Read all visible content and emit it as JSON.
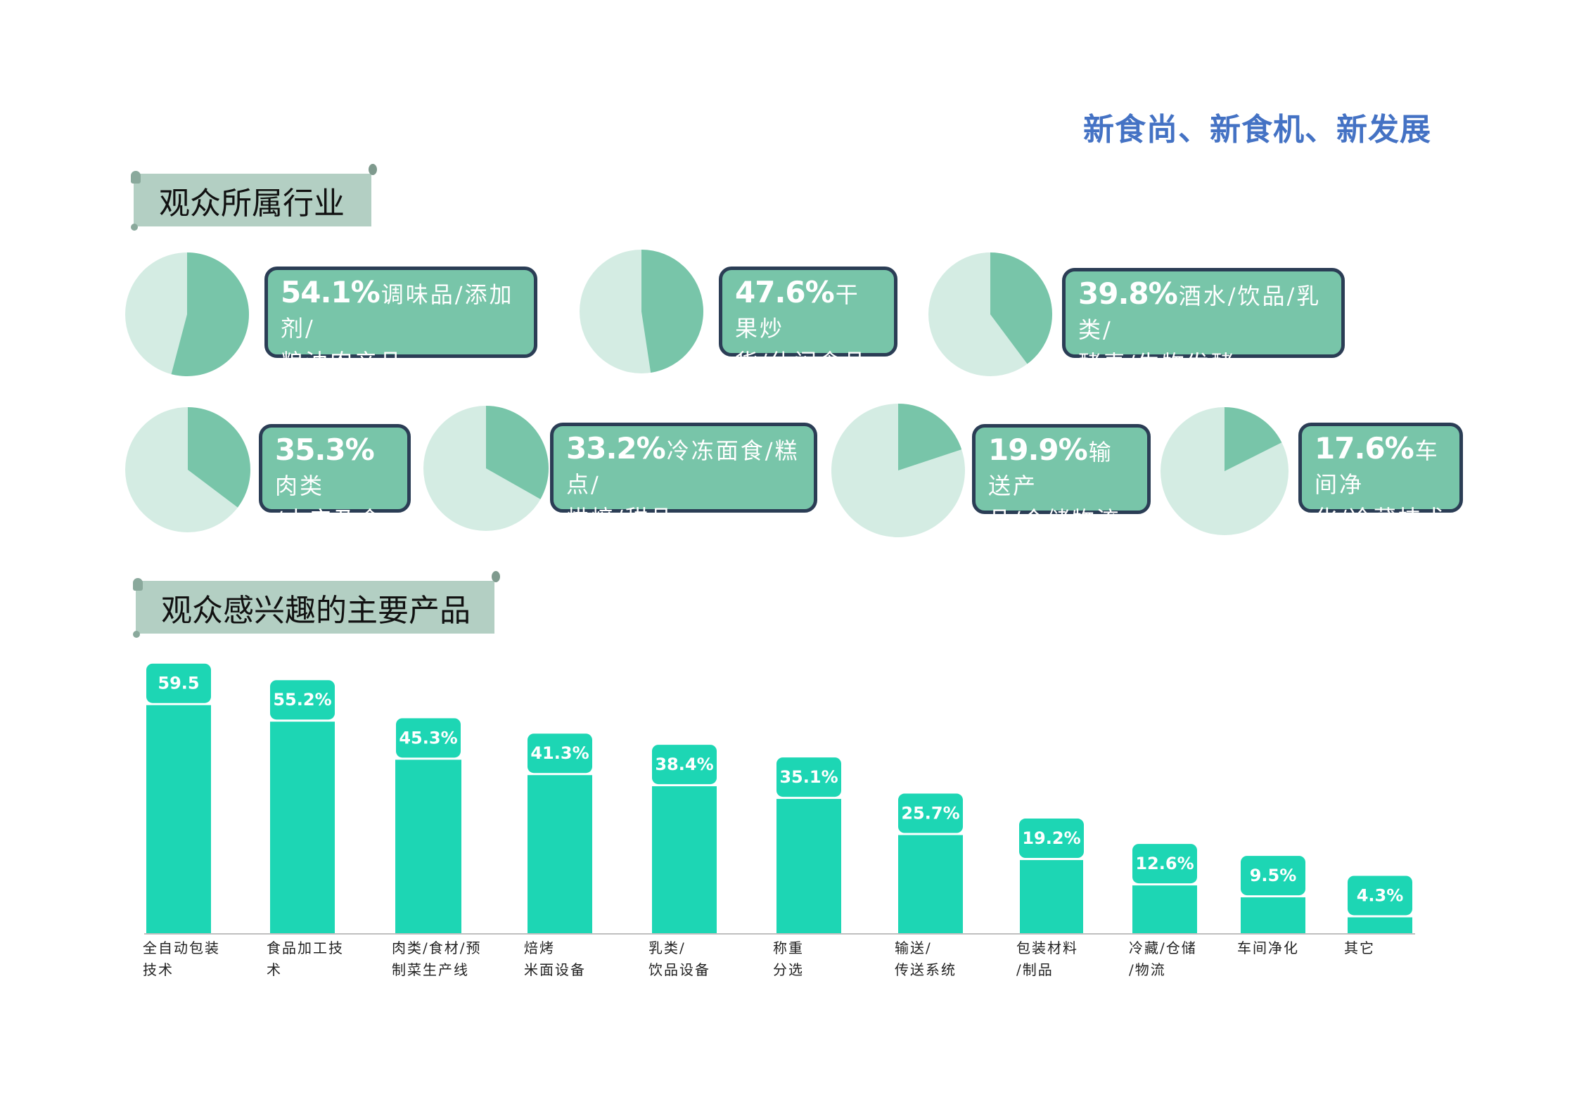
{
  "slogan": "新食尚、新食机、新发展",
  "section1": {
    "title": "观众所属行业"
  },
  "section2": {
    "title": "观众感兴趣的主要产品"
  },
  "colors": {
    "pie_dark": "#78c5a9",
    "pie_light": "#d4ece3",
    "box_fill": "#78c5a9",
    "box_border": "#2b3d55",
    "bar": "#1dd6b4",
    "banner": "#b3cfc3",
    "slogan": "#4472c4"
  },
  "industries": [
    {
      "pct": "54.1%",
      "value": 54.1,
      "line1": "调味品/添加剂/",
      "line2": "粮油农产品"
    },
    {
      "pct": "47.6%",
      "value": 47.6,
      "line1": "干果炒",
      "line2": "货/休闲食品"
    },
    {
      "pct": "39.8%",
      "value": 39.8,
      "line1": "酒水/饮品/乳类/",
      "line2": "酵素/生物发酵"
    },
    {
      "pct": "35.3%",
      "value": 35.3,
      "line1": "肉类",
      "line2": "/水产及食材"
    },
    {
      "pct": "33.2%",
      "value": 33.2,
      "line1": "冷冻面食/糕点/",
      "line2": "烘焙/甜品"
    },
    {
      "pct": "19.9%",
      "value": 19.9,
      "line1": "输送产",
      "line2": "品/仓储物流"
    },
    {
      "pct": "17.6%",
      "value": 17.6,
      "line1": "车间净",
      "line2": "化/冷藏技术"
    }
  ],
  "chart_data": {
    "type": "bar",
    "categories": [
      [
        "全自动包装",
        "技术"
      ],
      [
        "食品加工技",
        "术"
      ],
      [
        "肉类/食材/预",
        "制菜生产线"
      ],
      [
        "焙烤",
        "米面设备"
      ],
      [
        "乳类/",
        "饮品设备"
      ],
      [
        "称重",
        "分选"
      ],
      [
        "输送/",
        "传送系统"
      ],
      [
        "包装材料",
        "/制品"
      ],
      [
        "冷藏/仓储",
        "/物流"
      ],
      [
        "车间净化"
      ],
      [
        "其它"
      ]
    ],
    "values": [
      59.5,
      55.2,
      45.3,
      41.3,
      38.4,
      35.1,
      25.7,
      19.2,
      12.6,
      9.5,
      4.3
    ],
    "data_labels": [
      "59.5",
      "55.2%",
      "45.3%",
      "41.3%",
      "38.4%",
      "35.1%",
      "25.7%",
      "19.2%",
      "12.6%",
      "9.5%",
      "4.3%"
    ],
    "title": "",
    "xlabel": "",
    "ylabel": "",
    "ylim": [
      0,
      60
    ],
    "grid": false,
    "legend": "none"
  }
}
